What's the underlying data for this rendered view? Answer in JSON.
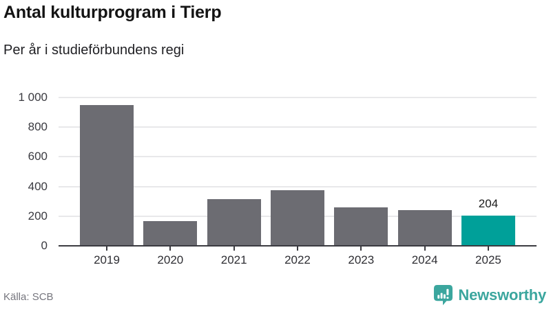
{
  "header": {
    "title": "Antal kulturprogram i Tierp",
    "subtitle": "Per år i studieförbundens regi"
  },
  "chart_data": {
    "type": "bar",
    "title": "Antal kulturprogram i Tierp",
    "subtitle": "Per år i studieförbundens regi",
    "categories": [
      "2019",
      "2020",
      "2021",
      "2022",
      "2023",
      "2024",
      "2025"
    ],
    "values": [
      950,
      165,
      315,
      375,
      260,
      240,
      204
    ],
    "highlight_index": 6,
    "value_label": {
      "index": 6,
      "text": "204"
    },
    "xlabel": "",
    "ylabel": "",
    "ylim": [
      0,
      1000
    ],
    "yticks": [
      0,
      200,
      400,
      600,
      800,
      1000
    ],
    "ytick_labels": [
      "0",
      "200",
      "400",
      "600",
      "800",
      "1 000"
    ],
    "grid": true,
    "legend": "none",
    "bar_color": "#6c6c72",
    "highlight_color": "#00a099",
    "gridline_color": "#e8e8ea",
    "axis_color": "#3a3a40"
  },
  "footer": {
    "source": "Källa: SCB",
    "brand": "Newsworthy",
    "brand_color": "#3ba69e"
  }
}
